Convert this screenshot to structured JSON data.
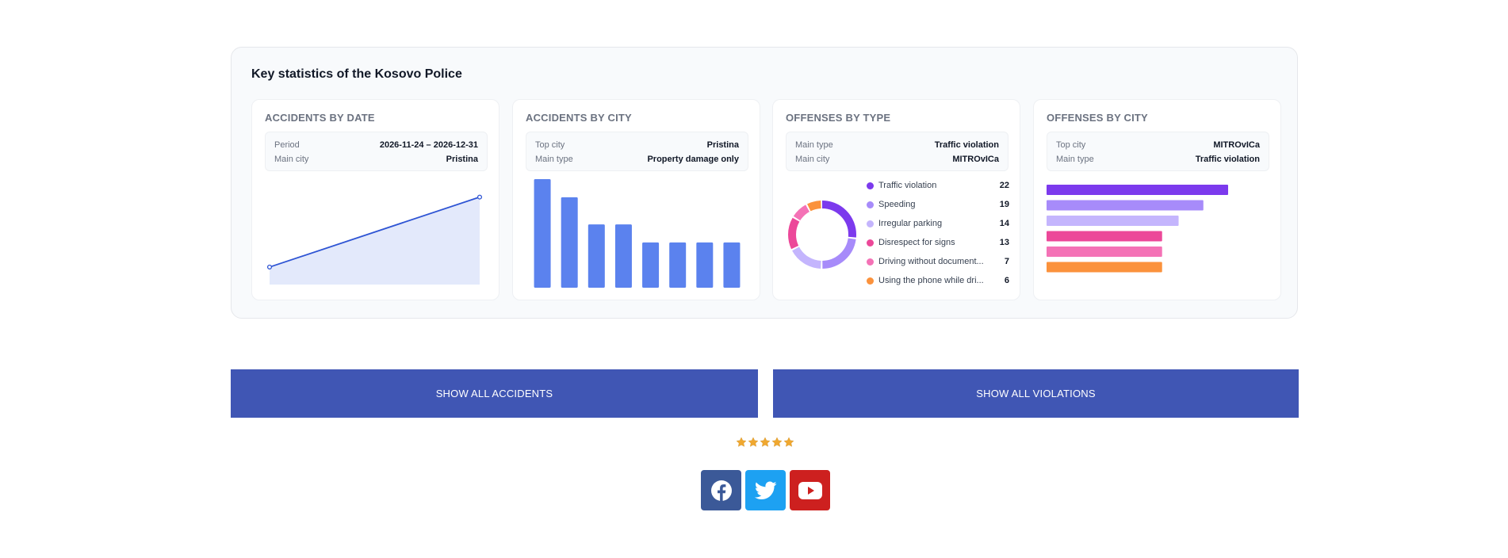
{
  "panel": {
    "title": "Key statistics of the Kosovo Police"
  },
  "cards": [
    {
      "title": "ACCIDENTS BY DATE",
      "info": [
        {
          "label": "Period",
          "value": "2026-11-24 – 2026-12-31"
        },
        {
          "label": "Main city",
          "value": "Pristina"
        }
      ]
    },
    {
      "title": "ACCIDENTS BY CITY",
      "info": [
        {
          "label": "Top city",
          "value": "Pristina"
        },
        {
          "label": "Main type",
          "value": "Property damage only"
        }
      ]
    },
    {
      "title": "OFFENSES BY TYPE",
      "info": [
        {
          "label": "Main type",
          "value": "Traffic violation"
        },
        {
          "label": "Main city",
          "value": "MITROvICa"
        }
      ],
      "legend": [
        {
          "label": "Traffic violation",
          "value": "22"
        },
        {
          "label": "Speeding",
          "value": "19"
        },
        {
          "label": "Irregular parking",
          "value": "14"
        },
        {
          "label": "Disrespect for signs",
          "value": "13"
        },
        {
          "label": "Driving without document...",
          "value": "7"
        },
        {
          "label": "Using the phone while dri...",
          "value": "6"
        }
      ]
    },
    {
      "title": "OFFENSES BY CITY",
      "info": [
        {
          "label": "Top city",
          "value": "MITROvICa"
        },
        {
          "label": "Main type",
          "value": "Traffic violation"
        }
      ]
    }
  ],
  "chart_data": [
    {
      "type": "area",
      "name": "accidents-by-date",
      "x": [
        "2026-11-24",
        "2026-12-31"
      ],
      "values": [
        1,
        5
      ],
      "ylim": [
        0,
        5.8
      ],
      "grid": false,
      "legend": "none",
      "color": "#2f55d4",
      "fill": "#e3e9fb"
    },
    {
      "type": "bar",
      "name": "accidents-by-city",
      "values": [
        6,
        5,
        3.5,
        3.5,
        2.5,
        2.5,
        2.5,
        2.5
      ],
      "ylim": [
        0,
        6
      ],
      "grid": false,
      "legend": "none",
      "color": "#5b82ee"
    },
    {
      "type": "pie",
      "name": "offenses-by-type",
      "labels": [
        "Traffic violation",
        "Speeding",
        "Irregular parking",
        "Disrespect for signs",
        "Driving without document...",
        "Using the phone while dri..."
      ],
      "values": [
        22,
        19,
        14,
        13,
        7,
        6
      ],
      "colors": [
        "#7c3aed",
        "#a78bfa",
        "#c4b5fd",
        "#ec4899",
        "#f472b6",
        "#fb923c"
      ],
      "donut": true
    },
    {
      "type": "bar",
      "orientation": "horizontal",
      "name": "offenses-by-city",
      "values": [
        22,
        19,
        16,
        14,
        14,
        14
      ],
      "xlim": [
        0,
        22
      ],
      "grid": false,
      "legend": "none",
      "colors": [
        "#7c3aed",
        "#a78bfa",
        "#c4b5fd",
        "#ec4899",
        "#f472b6",
        "#fb923c"
      ]
    }
  ],
  "buttons": {
    "accidents": "SHOW ALL ACCIDENTS",
    "violations": "SHOW ALL VIOLATIONS"
  },
  "rating": {
    "stars": 5,
    "max": 5,
    "color": "#f0a830"
  },
  "social": [
    {
      "name": "facebook",
      "icon": "facebook-icon",
      "color": "#3b5998"
    },
    {
      "name": "twitter",
      "icon": "twitter-icon",
      "color": "#1da1f2"
    },
    {
      "name": "youtube",
      "icon": "youtube-icon",
      "color": "#cd201f"
    }
  ]
}
